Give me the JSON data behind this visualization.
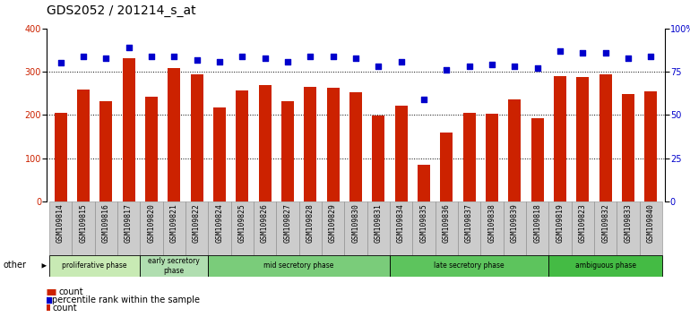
{
  "title": "GDS2052 / 201214_s_at",
  "samples": [
    "GSM109814",
    "GSM109815",
    "GSM109816",
    "GSM109817",
    "GSM109820",
    "GSM109821",
    "GSM109822",
    "GSM109824",
    "GSM109825",
    "GSM109826",
    "GSM109827",
    "GSM109828",
    "GSM109829",
    "GSM109830",
    "GSM109831",
    "GSM109834",
    "GSM109835",
    "GSM109836",
    "GSM109837",
    "GSM109838",
    "GSM109839",
    "GSM109818",
    "GSM109819",
    "GSM109823",
    "GSM109832",
    "GSM109833",
    "GSM109840"
  ],
  "counts": [
    205,
    258,
    232,
    332,
    243,
    308,
    295,
    218,
    257,
    270,
    232,
    265,
    262,
    253,
    198,
    222,
    85,
    160,
    205,
    202,
    235,
    192,
    290,
    288,
    295,
    248,
    255
  ],
  "percentiles": [
    80,
    84,
    83,
    89,
    84,
    84,
    82,
    81,
    84,
    83,
    81,
    84,
    84,
    83,
    78,
    81,
    59,
    76,
    78,
    79,
    78,
    77,
    87,
    86,
    86,
    83,
    84
  ],
  "phases": [
    {
      "label": "proliferative phase",
      "start": 0,
      "end": 4,
      "color": "#c8eab4"
    },
    {
      "label": "early secretory\nphase",
      "start": 4,
      "end": 7,
      "color": "#b0deb0"
    },
    {
      "label": "mid secretory phase",
      "start": 7,
      "end": 15,
      "color": "#7acc7a"
    },
    {
      "label": "late secretory phase",
      "start": 15,
      "end": 22,
      "color": "#5dc45d"
    },
    {
      "label": "ambiguous phase",
      "start": 22,
      "end": 27,
      "color": "#44bb44"
    }
  ],
  "bar_color": "#cc2200",
  "dot_color": "#0000cc",
  "ylim_left": [
    0,
    400
  ],
  "ylim_right": [
    0,
    100
  ],
  "grid_values": [
    100,
    200,
    300
  ],
  "title_fontsize": 10,
  "tick_fontsize": 7,
  "label_fontsize": 7,
  "xtick_bg": "#c8c8c8",
  "xtick_border": "#aaaaaa",
  "other_label": "other"
}
